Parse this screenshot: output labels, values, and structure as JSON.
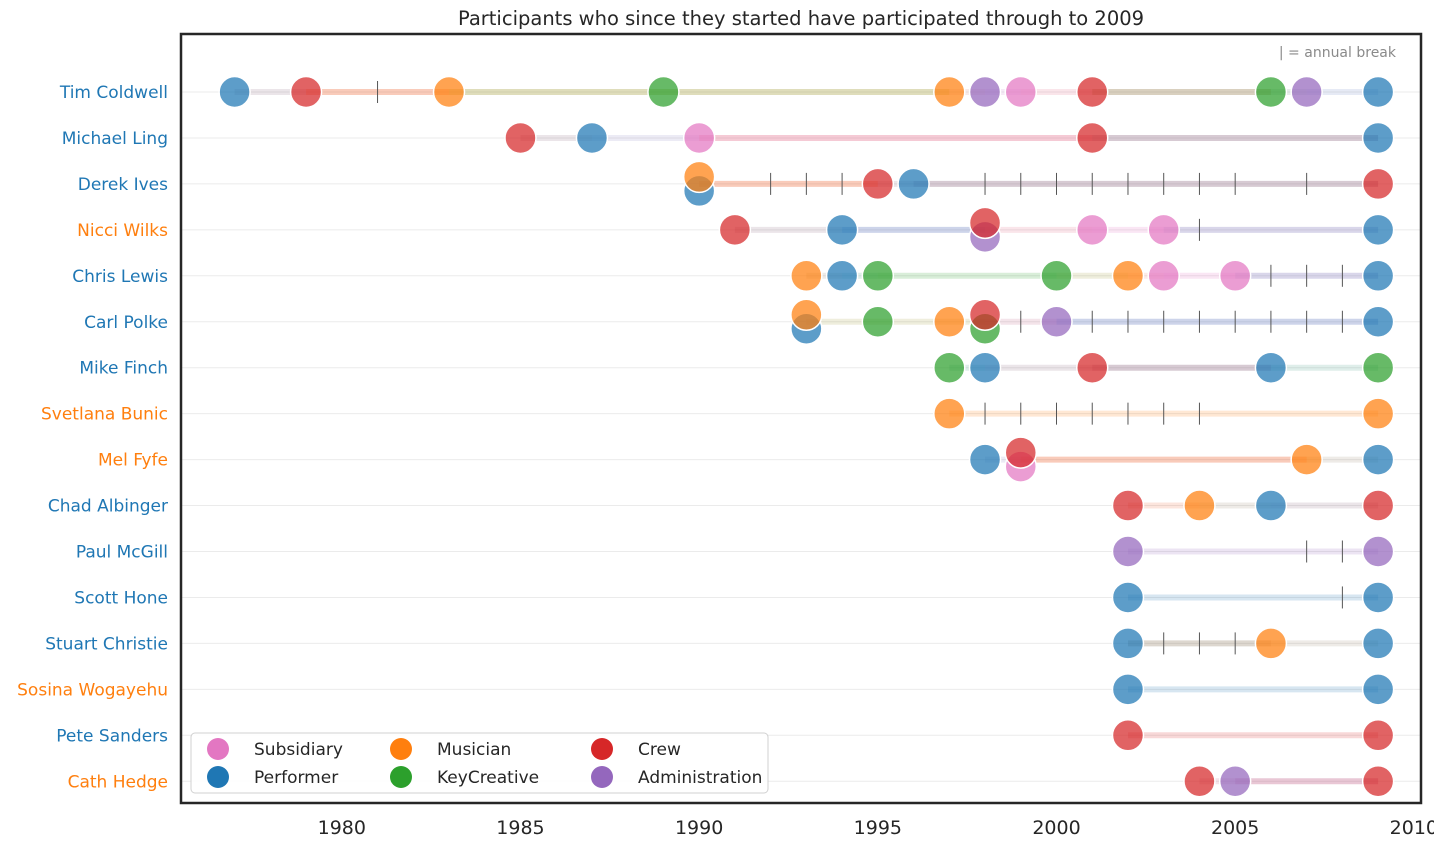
{
  "chart_data": {
    "type": "scatter",
    "title": "Participants who since they started have participated through to 2009",
    "note": "| = annual break",
    "xlim": [
      1975.5,
      2010.2
    ],
    "xticks": [
      1980,
      1985,
      1990,
      1995,
      2000,
      2005,
      2010
    ],
    "grid": "horizontal",
    "legend_position": "bottom-left",
    "categories": {
      "Subsidiary": "#e377c2",
      "Performer": "#1f77b4",
      "Musician": "#ff7f0e",
      "KeyCreative": "#2ca02c",
      "Crew": "#d62728",
      "Administration": "#9467bd"
    },
    "legend_order": [
      "Subsidiary",
      "Performer",
      "Musician",
      "KeyCreative",
      "Crew",
      "Administration"
    ],
    "participants": [
      {
        "name": "Tim Coldwell",
        "label_color": "#1f77b4",
        "points": [
          [
            1977,
            "Performer"
          ],
          [
            1979,
            "Crew"
          ],
          [
            1983,
            "Musician"
          ],
          [
            1989,
            "KeyCreative"
          ],
          [
            1997,
            "Musician"
          ],
          [
            1998,
            "Administration"
          ],
          [
            1999,
            "Subsidiary"
          ],
          [
            2001,
            "Crew"
          ],
          [
            2006,
            "KeyCreative"
          ],
          [
            2007,
            "Administration"
          ],
          [
            2009,
            "Performer"
          ]
        ],
        "breaks": [
          1981
        ]
      },
      {
        "name": "Michael Ling",
        "label_color": "#1f77b4",
        "points": [
          [
            1985,
            "Crew"
          ],
          [
            1987,
            "Performer"
          ],
          [
            1990,
            "Subsidiary"
          ],
          [
            2001,
            "Crew"
          ],
          [
            2009,
            "Performer"
          ]
        ],
        "breaks": []
      },
      {
        "name": "Derek Ives",
        "label_color": "#1f77b4",
        "points": [
          [
            1990,
            "Performer"
          ],
          [
            1990,
            "Musician"
          ],
          [
            1995,
            "Crew"
          ],
          [
            1996,
            "Performer"
          ],
          [
            2009,
            "Crew"
          ]
        ],
        "breaks": [
          1992,
          1993,
          1994,
          1998,
          1999,
          2000,
          2001,
          2002,
          2003,
          2004,
          2005,
          2007
        ]
      },
      {
        "name": "Nicci Wilks",
        "label_color": "#ff7f0e",
        "points": [
          [
            1991,
            "Crew"
          ],
          [
            1994,
            "Performer"
          ],
          [
            1998,
            "Administration"
          ],
          [
            1998,
            "Crew"
          ],
          [
            2001,
            "Subsidiary"
          ],
          [
            2003,
            "Subsidiary"
          ],
          [
            2009,
            "Performer"
          ]
        ],
        "breaks": [
          2004
        ]
      },
      {
        "name": "Chris Lewis",
        "label_color": "#1f77b4",
        "points": [
          [
            1993,
            "Musician"
          ],
          [
            1994,
            "Performer"
          ],
          [
            1995,
            "KeyCreative"
          ],
          [
            2000,
            "KeyCreative"
          ],
          [
            2002,
            "Musician"
          ],
          [
            2003,
            "Subsidiary"
          ],
          [
            2005,
            "Subsidiary"
          ],
          [
            2009,
            "Performer"
          ]
        ],
        "breaks": [
          2006,
          2007,
          2008
        ]
      },
      {
        "name": "Carl Polke",
        "label_color": "#1f77b4",
        "points": [
          [
            1993,
            "Performer"
          ],
          [
            1993,
            "Musician"
          ],
          [
            1995,
            "KeyCreative"
          ],
          [
            1997,
            "Musician"
          ],
          [
            1998,
            "KeyCreative"
          ],
          [
            1998,
            "Crew"
          ],
          [
            2000,
            "Administration"
          ],
          [
            2009,
            "Performer"
          ]
        ],
        "breaks": [
          1999,
          2001,
          2002,
          2003,
          2004,
          2005,
          2006,
          2007,
          2008
        ]
      },
      {
        "name": "Mike Finch",
        "label_color": "#1f77b4",
        "points": [
          [
            1997,
            "KeyCreative"
          ],
          [
            1998,
            "Performer"
          ],
          [
            2001,
            "Crew"
          ],
          [
            2006,
            "Performer"
          ],
          [
            2009,
            "KeyCreative"
          ]
        ],
        "breaks": []
      },
      {
        "name": "Svetlana Bunic",
        "label_color": "#ff7f0e",
        "points": [
          [
            1997,
            "Musician"
          ],
          [
            2009,
            "Musician"
          ]
        ],
        "breaks": [
          1998,
          1999,
          2000,
          2001,
          2002,
          2003,
          2004
        ]
      },
      {
        "name": "Mel Fyfe",
        "label_color": "#ff7f0e",
        "points": [
          [
            1998,
            "Performer"
          ],
          [
            1999,
            "Subsidiary"
          ],
          [
            1999,
            "Crew"
          ],
          [
            2007,
            "Musician"
          ],
          [
            2009,
            "Performer"
          ]
        ],
        "breaks": []
      },
      {
        "name": "Chad Albinger",
        "label_color": "#1f77b4",
        "points": [
          [
            2002,
            "Crew"
          ],
          [
            2004,
            "Musician"
          ],
          [
            2006,
            "Performer"
          ],
          [
            2009,
            "Crew"
          ]
        ],
        "breaks": []
      },
      {
        "name": "Paul McGill",
        "label_color": "#1f77b4",
        "points": [
          [
            2002,
            "Administration"
          ],
          [
            2009,
            "Administration"
          ]
        ],
        "breaks": [
          2007,
          2008
        ]
      },
      {
        "name": "Scott Hone",
        "label_color": "#1f77b4",
        "points": [
          [
            2002,
            "Performer"
          ],
          [
            2009,
            "Performer"
          ]
        ],
        "breaks": [
          2008
        ]
      },
      {
        "name": "Stuart Christie",
        "label_color": "#1f77b4",
        "points": [
          [
            2002,
            "Performer"
          ],
          [
            2006,
            "Musician"
          ],
          [
            2009,
            "Performer"
          ]
        ],
        "breaks": [
          2003,
          2004,
          2005
        ]
      },
      {
        "name": "Sosina Wogayehu",
        "label_color": "#ff7f0e",
        "points": [
          [
            2002,
            "Performer"
          ],
          [
            2009,
            "Performer"
          ]
        ],
        "breaks": []
      },
      {
        "name": "Pete Sanders",
        "label_color": "#1f77b4",
        "points": [
          [
            2002,
            "Crew"
          ],
          [
            2009,
            "Crew"
          ]
        ],
        "breaks": []
      },
      {
        "name": "Cath Hedge",
        "label_color": "#ff7f0e",
        "points": [
          [
            2004,
            "Crew"
          ],
          [
            2005,
            "Administration"
          ],
          [
            2009,
            "Crew"
          ]
        ],
        "breaks": []
      }
    ]
  }
}
